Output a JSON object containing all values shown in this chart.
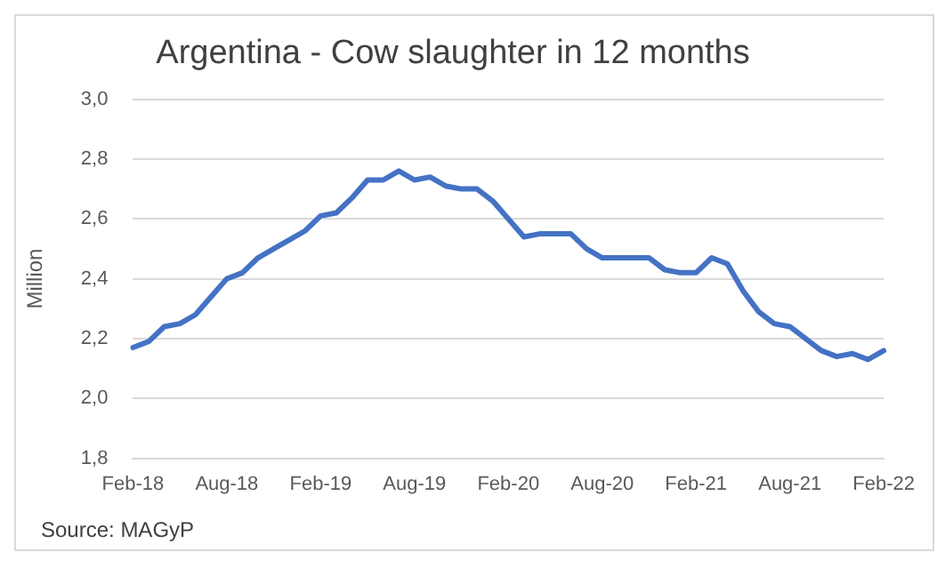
{
  "chart_data": {
    "type": "line",
    "title": "Argentina - Cow slaughter in 12 months",
    "ylabel": "Million",
    "categories": [
      "Feb-18",
      null,
      null,
      null,
      null,
      null,
      "Aug-18",
      null,
      null,
      null,
      null,
      null,
      "Feb-19",
      null,
      null,
      null,
      null,
      null,
      "Aug-19",
      null,
      null,
      null,
      null,
      null,
      "Feb-20",
      null,
      null,
      null,
      null,
      null,
      "Aug-20",
      null,
      null,
      null,
      null,
      null,
      "Feb-21",
      null,
      null,
      null,
      null,
      null,
      "Aug-21",
      null,
      null,
      null,
      null,
      null,
      "Feb-22"
    ],
    "series": [
      {
        "color": "#4472c4",
        "values": [
          2.17,
          2.19,
          2.24,
          2.25,
          2.28,
          2.34,
          2.4,
          2.42,
          2.47,
          2.5,
          2.53,
          2.56,
          2.61,
          2.62,
          2.67,
          2.73,
          2.73,
          2.76,
          2.73,
          2.74,
          2.71,
          2.7,
          2.7,
          2.66,
          2.6,
          2.54,
          2.55,
          2.55,
          2.55,
          2.5,
          2.47,
          2.47,
          2.47,
          2.47,
          2.43,
          2.42,
          2.42,
          2.47,
          2.45,
          2.36,
          2.29,
          2.25,
          2.24,
          2.2,
          2.16,
          2.14,
          2.15,
          2.13,
          2.16
        ]
      }
    ],
    "ylim": [
      1.8,
      3.0
    ],
    "yticks": [
      {
        "value": 1.8,
        "label": "1,8"
      },
      {
        "value": 2.0,
        "label": "2,0"
      },
      {
        "value": 2.2,
        "label": "2,2"
      },
      {
        "value": 2.4,
        "label": "2,4"
      },
      {
        "value": 2.6,
        "label": "2,6"
      },
      {
        "value": 2.8,
        "label": "2,8"
      },
      {
        "value": 3.0,
        "label": "3,0"
      }
    ],
    "grid": "y",
    "legend": false,
    "marker": "none",
    "line_style": "solid",
    "annotations": [
      "Source: MAGyP"
    ]
  }
}
